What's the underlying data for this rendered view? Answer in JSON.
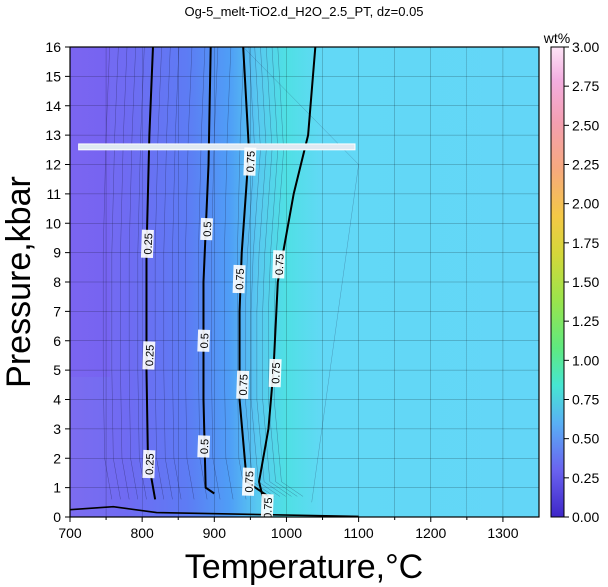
{
  "chart_data": {
    "type": "heatmap",
    "title": "Og-5_melt-TiO2.d_H2O_2.5_PT, dz=0.05",
    "xlabel": "Temperature,°C",
    "ylabel": "Pressure,kbar",
    "xlim": [
      700,
      1350
    ],
    "ylim": [
      0,
      16
    ],
    "x_ticks": [
      "700",
      "800",
      "900",
      "1000",
      "1100",
      "1200",
      "1300"
    ],
    "y_ticks": [
      "0",
      "1",
      "2",
      "3",
      "4",
      "5",
      "6",
      "7",
      "8",
      "9",
      "10",
      "11",
      "12",
      "13",
      "14",
      "15",
      "16"
    ],
    "grid": true,
    "colorbar": {
      "label": "wt%",
      "range": [
        0,
        3.0
      ],
      "ticks": [
        "0.00",
        "0.25",
        "0.50",
        "0.75",
        "1.00",
        "1.25",
        "1.50",
        "1.75",
        "2.00",
        "2.25",
        "2.50",
        "2.75",
        "3.00"
      ],
      "colors": [
        "#4b2bd6",
        "#6a63f0",
        "#5aa6f6",
        "#47e3d0",
        "#5fe889",
        "#8fe54a",
        "#c8d93a",
        "#f2d23a",
        "#f7b36b",
        "#f59a9a",
        "#f3a6d8",
        "#fbd5f2"
      ]
    },
    "contour_levels": [
      {
        "level": 0.25,
        "points": [
          [
            815,
            16
          ],
          [
            810,
            13
          ],
          [
            806,
            9
          ],
          [
            806,
            5
          ],
          [
            808,
            2
          ],
          [
            818,
            0.6
          ]
        ],
        "labels": [
          {
            "text": "0.25",
            "x": 808,
            "y": 9.3
          },
          {
            "text": "0.25",
            "x": 810,
            "y": 5.5
          },
          {
            "text": "0.25",
            "x": 810,
            "y": 1.8
          }
        ]
      },
      {
        "level": 0.5,
        "points": [
          [
            895,
            16
          ],
          [
            892,
            12
          ],
          [
            885,
            8
          ],
          [
            885,
            4
          ],
          [
            888,
            1
          ],
          [
            900,
            0.8
          ]
        ],
        "labels": [
          {
            "text": "0.5",
            "x": 890,
            "y": 9.8
          },
          {
            "text": "0.5",
            "x": 886,
            "y": 6.0
          },
          {
            "text": "0.5",
            "x": 886,
            "y": 2.4
          }
        ]
      },
      {
        "level": 0.75,
        "points": [
          [
            940,
            16
          ],
          [
            948,
            12.5
          ],
          [
            938,
            9
          ],
          [
            935,
            7
          ],
          [
            935,
            4
          ],
          [
            945,
            1.2
          ],
          [
            975,
            0.7
          ]
        ],
        "labels": [
          {
            "text": "0.75",
            "x": 950,
            "y": 12.1
          },
          {
            "text": "0.75",
            "x": 935,
            "y": 8.1
          },
          {
            "text": "0.75",
            "x": 940,
            "y": 4.5
          },
          {
            "text": "0.75",
            "x": 948,
            "y": 1.2
          }
        ]
      },
      {
        "level": 0.75,
        "points": [
          [
            1040,
            16
          ],
          [
            1030,
            13
          ],
          [
            1010,
            11
          ],
          [
            988,
            8
          ],
          [
            982,
            5
          ],
          [
            975,
            3
          ],
          [
            962,
            1.2
          ],
          [
            970,
            0.4
          ]
        ],
        "labels": [
          {
            "text": "0.75",
            "x": 990,
            "y": 8.6
          },
          {
            "text": "0.75",
            "x": 985,
            "y": 4.9
          },
          {
            "text": "0.75",
            "x": 974,
            "y": 0.3
          }
        ]
      }
    ],
    "highlight_band": {
      "x": [
        712,
        1095
      ],
      "y": [
        12.5,
        12.7
      ],
      "color": "#dfe9f2"
    }
  }
}
